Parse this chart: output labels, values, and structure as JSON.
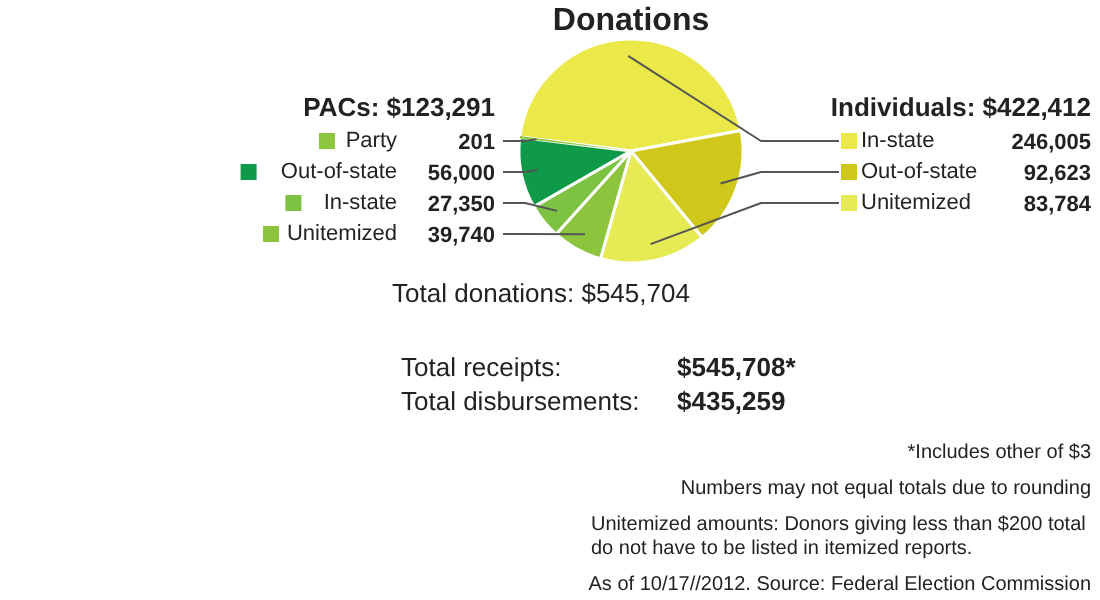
{
  "chart_data": {
    "type": "pie",
    "title": "Donations",
    "categories": [
      "Party",
      "In-state",
      "Out-of-state",
      "Unitemized",
      "Unitemized",
      "In-state",
      "Out-of-state"
    ],
    "values": [
      201,
      246005,
      92623,
      83784,
      39740,
      27350,
      56000
    ],
    "value_labels": [
      "201",
      "246,005",
      "92,623",
      "83,784",
      "39,740",
      "27,350",
      "56,000"
    ],
    "legend": "left",
    "colors": [
      "#8dc63f",
      "#ebe84a",
      "#cfc81a",
      "#e6ea55",
      "#8cc43e",
      "#7dc243",
      "#0e9a48"
    ],
    "annotations": [
      "PACs: $123,291",
      "Individuals: $422,412",
      "Total donations: $545,704",
      "Total receipts: $545,708*",
      "Total disbursements: $435,259",
      "*Includes other of $3",
      "Numbers may not equal totals due to rounding",
      "Unitemized amounts: Donors giving less than $200 total\ndo not have to be listed in itemized reports.",
      "As of 10/17//2012. Source: Federal Election Commission"
    ]
  }
}
